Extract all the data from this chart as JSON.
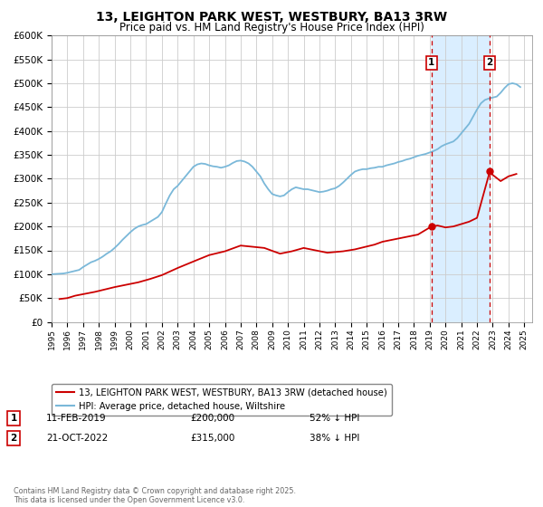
{
  "title": "13, LEIGHTON PARK WEST, WESTBURY, BA13 3RW",
  "subtitle": "Price paid vs. HM Land Registry's House Price Index (HPI)",
  "ylim": [
    0,
    600000
  ],
  "xlim": [
    1995.0,
    2025.5
  ],
  "background_color": "#ffffff",
  "plot_bg_color": "#ffffff",
  "grid_color": "#cccccc",
  "hpi_color": "#7ab8d9",
  "price_color": "#cc0000",
  "shade_color": "#daeeff",
  "event1_x": 2019.11,
  "event2_x": 2022.81,
  "event1_price": 200000,
  "event2_price": 315000,
  "event1_label": "1",
  "event2_label": "2",
  "legend_label_price": "13, LEIGHTON PARK WEST, WESTBURY, BA13 3RW (detached house)",
  "legend_label_hpi": "HPI: Average price, detached house, Wiltshire",
  "annotation1_date": "11-FEB-2019",
  "annotation1_price": "£200,000",
  "annotation1_hpi": "52% ↓ HPI",
  "annotation2_date": "21-OCT-2022",
  "annotation2_price": "£315,000",
  "annotation2_hpi": "38% ↓ HPI",
  "footer": "Contains HM Land Registry data © Crown copyright and database right 2025.\nThis data is licensed under the Open Government Licence v3.0.",
  "hpi_x": [
    1995.0,
    1995.25,
    1995.5,
    1995.75,
    1996.0,
    1996.25,
    1996.5,
    1996.75,
    1997.0,
    1997.25,
    1997.5,
    1997.75,
    1998.0,
    1998.25,
    1998.5,
    1998.75,
    1999.0,
    1999.25,
    1999.5,
    1999.75,
    2000.0,
    2000.25,
    2000.5,
    2000.75,
    2001.0,
    2001.25,
    2001.5,
    2001.75,
    2002.0,
    2002.25,
    2002.5,
    2002.75,
    2003.0,
    2003.25,
    2003.5,
    2003.75,
    2004.0,
    2004.25,
    2004.5,
    2004.75,
    2005.0,
    2005.25,
    2005.5,
    2005.75,
    2006.0,
    2006.25,
    2006.5,
    2006.75,
    2007.0,
    2007.25,
    2007.5,
    2007.75,
    2008.0,
    2008.25,
    2008.5,
    2008.75,
    2009.0,
    2009.25,
    2009.5,
    2009.75,
    2010.0,
    2010.25,
    2010.5,
    2010.75,
    2011.0,
    2011.25,
    2011.5,
    2011.75,
    2012.0,
    2012.25,
    2012.5,
    2012.75,
    2013.0,
    2013.25,
    2013.5,
    2013.75,
    2014.0,
    2014.25,
    2014.5,
    2014.75,
    2015.0,
    2015.25,
    2015.5,
    2015.75,
    2016.0,
    2016.25,
    2016.5,
    2016.75,
    2017.0,
    2017.25,
    2017.5,
    2017.75,
    2018.0,
    2018.25,
    2018.5,
    2018.75,
    2019.0,
    2019.25,
    2019.5,
    2019.75,
    2020.0,
    2020.25,
    2020.5,
    2020.75,
    2021.0,
    2021.25,
    2021.5,
    2021.75,
    2022.0,
    2022.25,
    2022.5,
    2022.75,
    2023.0,
    2023.25,
    2023.5,
    2023.75,
    2024.0,
    2024.25,
    2024.5,
    2024.75
  ],
  "hpi_y": [
    100000,
    100500,
    101000,
    101500,
    103000,
    105000,
    107000,
    109000,
    115000,
    120000,
    125000,
    128000,
    132000,
    137000,
    143000,
    148000,
    155000,
    163000,
    172000,
    180000,
    188000,
    195000,
    200000,
    203000,
    205000,
    210000,
    215000,
    220000,
    230000,
    248000,
    265000,
    278000,
    285000,
    295000,
    305000,
    315000,
    325000,
    330000,
    332000,
    331000,
    328000,
    326000,
    325000,
    323000,
    325000,
    328000,
    333000,
    337000,
    338000,
    336000,
    332000,
    325000,
    315000,
    305000,
    290000,
    278000,
    268000,
    265000,
    263000,
    265000,
    272000,
    278000,
    282000,
    280000,
    278000,
    278000,
    276000,
    274000,
    272000,
    273000,
    275000,
    278000,
    280000,
    285000,
    292000,
    300000,
    308000,
    315000,
    318000,
    320000,
    320000,
    322000,
    323000,
    325000,
    325000,
    328000,
    330000,
    332000,
    335000,
    337000,
    340000,
    342000,
    345000,
    348000,
    350000,
    352000,
    355000,
    358000,
    362000,
    368000,
    372000,
    375000,
    378000,
    385000,
    395000,
    405000,
    415000,
    430000,
    445000,
    458000,
    465000,
    468000,
    470000,
    472000,
    480000,
    490000,
    498000,
    500000,
    498000,
    492000
  ],
  "price_x": [
    1995.5,
    1996.0,
    1996.5,
    1997.75,
    1999.0,
    2000.5,
    2001.25,
    2002.0,
    2003.0,
    2004.25,
    2005.0,
    2006.0,
    2007.0,
    2008.5,
    2009.5,
    2010.25,
    2011.0,
    2012.5,
    2013.5,
    2014.25,
    2015.5,
    2016.0,
    2016.75,
    2017.5,
    2018.25,
    2019.11,
    2019.5,
    2020.0,
    2020.5,
    2021.0,
    2021.5,
    2022.0,
    2022.81,
    2023.0,
    2023.5,
    2024.0,
    2024.5
  ],
  "price_y": [
    48000,
    50000,
    55000,
    63000,
    73000,
    83000,
    90000,
    98000,
    113000,
    130000,
    140000,
    148000,
    160000,
    155000,
    143000,
    148000,
    155000,
    145000,
    148000,
    152000,
    162000,
    168000,
    173000,
    178000,
    183000,
    200000,
    202000,
    198000,
    200000,
    205000,
    210000,
    218000,
    315000,
    308000,
    295000,
    305000,
    310000
  ]
}
